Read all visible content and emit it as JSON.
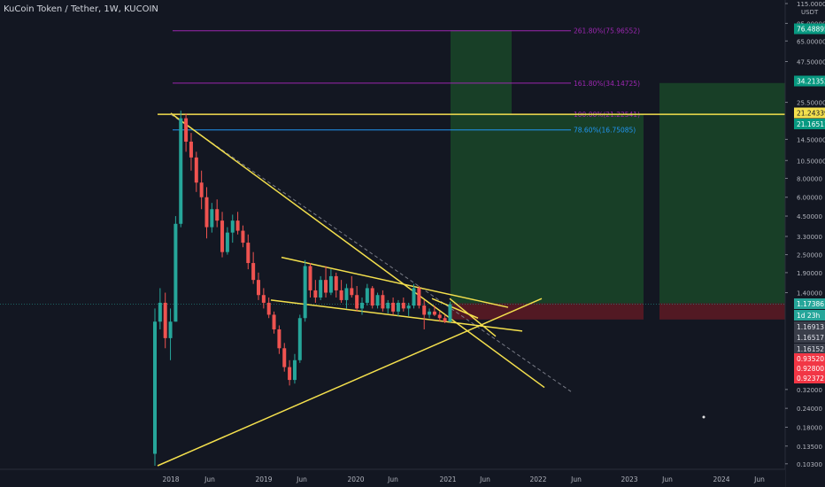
{
  "header": {
    "symbol_title": "KuCoin Token / Tether, 1W, KUCOIN"
  },
  "colors": {
    "background": "#131722",
    "up_candle": "#26a69a",
    "down_candle": "#ef5350",
    "trendline": "#f4e04d",
    "fib_magenta": "#9c27b0",
    "fib_blue": "#2196f3",
    "target_zone": "#1b4d2a",
    "stop_zone": "#5a1a24"
  },
  "chart_data": {
    "type": "candlestick",
    "scale": "log",
    "x_axis": {
      "ticks": [
        "2018",
        "Jun",
        "2019",
        "Jun",
        "2020",
        "Jun",
        "2021",
        "Jun",
        "2022",
        "Jun",
        "2023",
        "Jun",
        "2024",
        "Jun"
      ]
    },
    "y_axis": {
      "unit_label": "USDT",
      "ticks": [
        "115.00000",
        "85.00000",
        "65.00000",
        "47.50000",
        "25.50000",
        "14.50000",
        "10.50000",
        "8.00000",
        "6.00000",
        "4.50000",
        "3.30000",
        "2.50000",
        "1.90000",
        "1.40000",
        "0.32000",
        "0.24000",
        "0.18000",
        "0.13500",
        "0.10300"
      ],
      "ylim": [
        0.1,
        115
      ]
    },
    "price_labels": [
      {
        "text": "76.48895",
        "kind": "green"
      },
      {
        "text": "34.21352",
        "kind": "green"
      },
      {
        "text": "21.24339",
        "kind": "yellow"
      },
      {
        "text": "21.16511",
        "kind": "green"
      },
      {
        "text": "1.17386",
        "kind": "teal"
      },
      {
        "text": "1d 23h",
        "kind": "teal"
      },
      {
        "text": "1.16913",
        "kind": "gray"
      },
      {
        "text": "1.16517",
        "kind": "gray"
      },
      {
        "text": "1.16152",
        "kind": "gray"
      },
      {
        "text": "0.93520",
        "kind": "red"
      },
      {
        "text": "0.92800",
        "kind": "red"
      },
      {
        "text": "0.92372",
        "kind": "red"
      }
    ],
    "fib_levels": [
      {
        "label": "261.80%(75.96552)",
        "value": 75.97,
        "color": "#9c27b0"
      },
      {
        "label": "161.80%(34.14725)",
        "value": 34.15,
        "color": "#9c27b0"
      },
      {
        "label": "100.00%(21.22541)",
        "value": 21.23,
        "color": "#9c27b0"
      },
      {
        "label": "78.60%(16.75085)",
        "value": 16.75,
        "color": "#2196f3"
      }
    ],
    "horizontal_levels": [
      {
        "value": 21.24,
        "color": "#f4e04d"
      }
    ],
    "last_price": 1.17386,
    "candles": [
      [
        0,
        0.12,
        1.1,
        0.1,
        0.9
      ],
      [
        1,
        0.9,
        1.5,
        0.8,
        1.2
      ],
      [
        2,
        1.2,
        1.4,
        0.6,
        0.7
      ],
      [
        3,
        0.7,
        1.1,
        0.5,
        0.9
      ],
      [
        4,
        0.9,
        4.5,
        0.9,
        4.0
      ],
      [
        5,
        4.0,
        22.5,
        3.8,
        20.0
      ],
      [
        6,
        20.0,
        21.5,
        12.0,
        14.0
      ],
      [
        7,
        14.0,
        16.0,
        9.0,
        11.0
      ],
      [
        8,
        11.0,
        12.0,
        6.5,
        7.5
      ],
      [
        9,
        7.5,
        9.0,
        5.0,
        6.0
      ],
      [
        10,
        6.0,
        7.0,
        3.2,
        3.8
      ],
      [
        11,
        3.8,
        5.5,
        3.5,
        5.0
      ],
      [
        12,
        5.0,
        5.8,
        3.8,
        4.2
      ],
      [
        13,
        4.2,
        4.8,
        2.4,
        2.6
      ],
      [
        14,
        2.6,
        3.8,
        2.5,
        3.5
      ],
      [
        15,
        3.5,
        4.6,
        3.0,
        4.2
      ],
      [
        16,
        4.2,
        4.8,
        3.4,
        3.6
      ],
      [
        17,
        3.6,
        3.9,
        2.8,
        3.0
      ],
      [
        18,
        3.0,
        3.4,
        2.0,
        2.2
      ],
      [
        19,
        2.2,
        2.6,
        1.6,
        1.7
      ],
      [
        20,
        1.7,
        1.9,
        1.25,
        1.35
      ],
      [
        21,
        1.35,
        1.5,
        1.1,
        1.2
      ],
      [
        22,
        1.2,
        1.3,
        0.95,
        1.0
      ],
      [
        23,
        1.0,
        1.05,
        0.75,
        0.8
      ],
      [
        24,
        0.8,
        0.85,
        0.55,
        0.6
      ],
      [
        25,
        0.6,
        0.65,
        0.42,
        0.45
      ],
      [
        26,
        0.45,
        0.5,
        0.34,
        0.37
      ],
      [
        27,
        0.37,
        0.55,
        0.35,
        0.5
      ],
      [
        28,
        0.5,
        1.0,
        0.48,
        0.95
      ],
      [
        29,
        0.95,
        2.3,
        0.9,
        2.1
      ],
      [
        30,
        2.1,
        2.2,
        1.3,
        1.45
      ],
      [
        31,
        1.45,
        1.7,
        1.2,
        1.3
      ],
      [
        32,
        1.3,
        1.8,
        1.25,
        1.7
      ],
      [
        33,
        1.7,
        2.1,
        1.3,
        1.4
      ],
      [
        34,
        1.4,
        2.0,
        1.35,
        1.8
      ],
      [
        35,
        1.8,
        1.9,
        1.3,
        1.45
      ],
      [
        36,
        1.45,
        1.7,
        1.2,
        1.25
      ],
      [
        37,
        1.25,
        1.6,
        1.1,
        1.5
      ],
      [
        38,
        1.5,
        1.8,
        1.3,
        1.35
      ],
      [
        39,
        1.35,
        1.55,
        1.05,
        1.1
      ],
      [
        40,
        1.1,
        1.3,
        1.0,
        1.2
      ],
      [
        41,
        1.2,
        1.6,
        1.15,
        1.5
      ],
      [
        42,
        1.5,
        1.55,
        1.1,
        1.15
      ],
      [
        43,
        1.15,
        1.4,
        1.1,
        1.35
      ],
      [
        44,
        1.35,
        1.45,
        1.05,
        1.1
      ],
      [
        45,
        1.1,
        1.25,
        1.02,
        1.2
      ],
      [
        46,
        1.2,
        1.3,
        1.0,
        1.05
      ],
      [
        47,
        1.05,
        1.25,
        0.98,
        1.2
      ],
      [
        48,
        1.2,
        1.3,
        1.05,
        1.1
      ],
      [
        49,
        1.1,
        1.2,
        0.98,
        1.15
      ],
      [
        50,
        1.15,
        1.6,
        1.1,
        1.5
      ],
      [
        51,
        1.5,
        1.55,
        1.1,
        1.15
      ],
      [
        52,
        1.15,
        1.25,
        0.8,
        1.0
      ],
      [
        53,
        1.0,
        1.1,
        0.95,
        1.05
      ],
      [
        54,
        1.05,
        1.15,
        0.98,
        1.0
      ],
      [
        55,
        1.0,
        1.05,
        0.9,
        0.95
      ],
      [
        56,
        0.95,
        1.0,
        0.88,
        0.9
      ],
      [
        57,
        0.9,
        1.22,
        0.89,
        1.17
      ]
    ]
  }
}
